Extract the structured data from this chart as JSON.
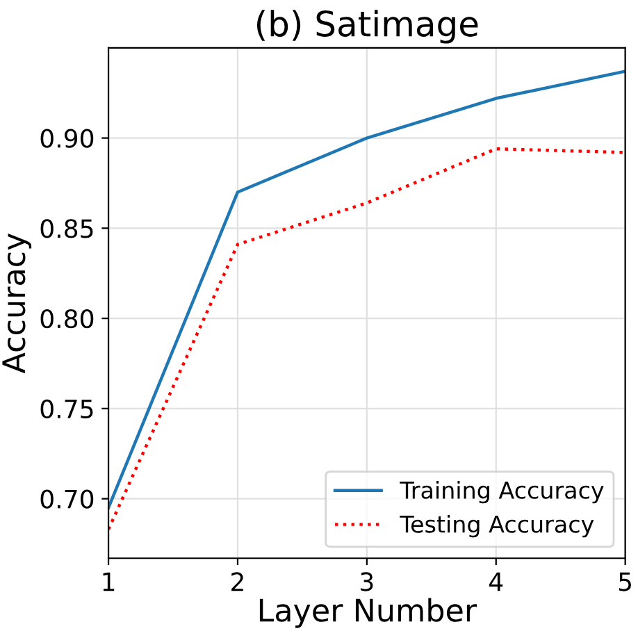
{
  "chart_data": {
    "type": "line",
    "title": "(b) Satimage",
    "xlabel": "Layer Number",
    "ylabel": "Accuracy",
    "x": [
      1,
      2,
      3,
      4,
      5
    ],
    "series": [
      {
        "name": "Training Accuracy",
        "color": "#1f77b4",
        "line_style": "solid",
        "values": [
          0.695,
          0.87,
          0.9,
          0.922,
          0.937
        ]
      },
      {
        "name": "Testing Accuracy",
        "color": "#ff0000",
        "line_style": "dotted",
        "values": [
          0.683,
          0.841,
          0.864,
          0.894,
          0.892
        ]
      }
    ],
    "xlim": [
      1,
      5
    ],
    "xticks": [
      1,
      2,
      3,
      4,
      5
    ],
    "ylim": [
      0.667,
      0.95
    ],
    "yticks": [
      {
        "value": 0.7,
        "label": "0.70"
      },
      {
        "value": 0.75,
        "label": "0.75"
      },
      {
        "value": 0.8,
        "label": "0.80"
      },
      {
        "value": 0.85,
        "label": "0.85"
      },
      {
        "value": 0.9,
        "label": "0.90"
      }
    ],
    "grid": true,
    "legend": "lower right"
  }
}
